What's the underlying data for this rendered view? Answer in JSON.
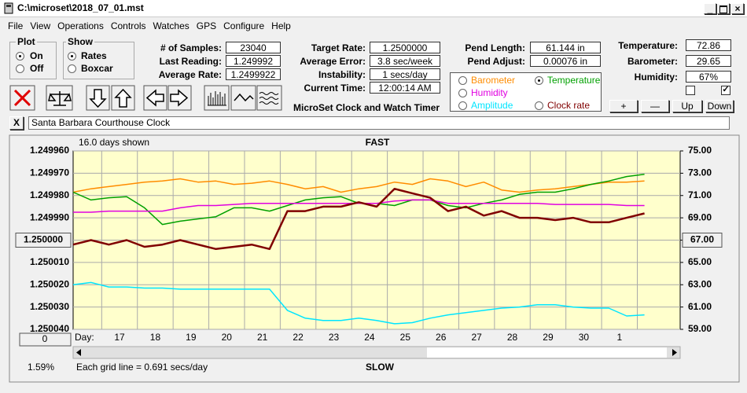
{
  "window": {
    "title": "C:\\microset\\2018_07_01.mst"
  },
  "menu": [
    "File",
    "View",
    "Operations",
    "Controls",
    "Watches",
    "GPS",
    "Configure",
    "Help"
  ],
  "plot_group": {
    "title": "Plot",
    "options": [
      "On",
      "Off"
    ]
  },
  "show_group": {
    "title": "Show",
    "options": [
      "Rates",
      "Boxcar"
    ]
  },
  "fields_left": [
    {
      "label": "# of Samples:",
      "value": "23040"
    },
    {
      "label": "Last Reading:",
      "value": "1.249992"
    },
    {
      "label": "Average Rate:",
      "value": "1.2499922"
    }
  ],
  "fields_mid": [
    {
      "label": "Target Rate:",
      "value": "1.2500000"
    },
    {
      "label": "Average Error:",
      "value": "3.8 sec/week"
    },
    {
      "label": "Instability:",
      "value": "1 secs/day"
    },
    {
      "label": "Current Time:",
      "value": "12:00:14 AM"
    }
  ],
  "app_title": "MicroSet Clock and Watch Timer",
  "fields_pend": [
    {
      "label": "Pend Length:",
      "value": "61.144 in"
    },
    {
      "label": "Pend Adjust:",
      "value": "0.00076 in"
    }
  ],
  "fields_env": [
    {
      "label": "Temperature:",
      "value": "72.86"
    },
    {
      "label": "Barometer:",
      "value": "29.65"
    },
    {
      "label": "Humidity:",
      "value": "67%"
    }
  ],
  "env_buttons": [
    "+",
    "—",
    "Up",
    "Down"
  ],
  "close_button": "X",
  "clock_name": "Santa Barbara Courthouse Clock",
  "chart_data": {
    "type": "line",
    "top_label": "16.0 days shown",
    "fast_label": "FAST",
    "slow_label": "SLOW",
    "x_label": "Day:",
    "footer": "Each grid line = 0.691 secs/day",
    "status": "1.59%",
    "bottom_button": "0",
    "selected_series": 1,
    "xlim": [
      0,
      17
    ],
    "xticks": [
      {
        "value": 1.3,
        "label": "17"
      },
      {
        "value": 2.3,
        "label": "18"
      },
      {
        "value": 3.3,
        "label": "19"
      },
      {
        "value": 4.3,
        "label": "20"
      },
      {
        "value": 5.3,
        "label": "21"
      },
      {
        "value": 6.3,
        "label": "22"
      },
      {
        "value": 7.3,
        "label": "23"
      },
      {
        "value": 8.3,
        "label": "24"
      },
      {
        "value": 9.3,
        "label": "25"
      },
      {
        "value": 10.3,
        "label": "26"
      },
      {
        "value": 11.3,
        "label": "27"
      },
      {
        "value": 12.3,
        "label": "28"
      },
      {
        "value": 13.3,
        "label": "29"
      },
      {
        "value": 14.3,
        "label": "30"
      },
      {
        "value": 15.3,
        "label": "1"
      }
    ],
    "ylim": [
      1.24996,
      1.25004
    ],
    "y_inverted": true,
    "yticks": [
      {
        "value": 1.24996,
        "label": "1.249960"
      },
      {
        "value": 1.24997,
        "label": "1.249970"
      },
      {
        "value": 1.24998,
        "label": "1.249980"
      },
      {
        "value": 1.24999,
        "label": "1.249990"
      },
      {
        "value": 1.25,
        "label": "1.250000"
      },
      {
        "value": 1.25001,
        "label": "1.250010"
      },
      {
        "value": 1.25002,
        "label": "1.250020"
      },
      {
        "value": 1.25003,
        "label": "1.250030"
      },
      {
        "value": 1.25004,
        "label": "1.250040"
      }
    ],
    "y2lim": [
      59,
      75
    ],
    "y2ticks": [
      {
        "value": 75,
        "label": "75.00"
      },
      {
        "value": 73,
        "label": "73.00"
      },
      {
        "value": 71,
        "label": "71.00"
      },
      {
        "value": 69,
        "label": "69.00"
      },
      {
        "value": 67,
        "label": "67.00"
      },
      {
        "value": 65,
        "label": "65.00"
      },
      {
        "value": 63,
        "label": "63.00"
      },
      {
        "value": 61,
        "label": "61.00"
      },
      {
        "value": 59,
        "label": "59.00"
      }
    ],
    "button_tick": 4,
    "grid": true,
    "x": [
      0,
      0.5,
      1,
      1.5,
      2,
      2.5,
      3,
      3.5,
      4,
      4.5,
      5,
      5.5,
      6,
      6.5,
      7,
      7.5,
      8,
      8.5,
      9,
      9.5,
      10,
      10.5,
      11,
      11.5,
      12,
      12.5,
      13,
      13.5,
      14,
      14.5,
      15,
      15.5,
      16
    ],
    "series": [
      {
        "name": "Barometer",
        "color": "#ff8c00",
        "axis": "y2",
        "values": [
          71.3,
          71.6,
          71.8,
          72.0,
          72.2,
          72.3,
          72.5,
          72.2,
          72.3,
          72.0,
          72.1,
          72.3,
          72.0,
          71.6,
          71.8,
          71.3,
          71.6,
          71.8,
          72.2,
          72.0,
          72.5,
          72.3,
          71.8,
          72.2,
          71.5,
          71.3,
          71.5,
          71.6,
          71.8,
          72.0,
          72.2,
          72.2,
          72.3
        ]
      },
      {
        "name": "Temperature",
        "color": "#00a000",
        "axis": "y2",
        "values": [
          71.3,
          70.6,
          70.8,
          70.9,
          69.9,
          68.4,
          68.7,
          68.9,
          69.1,
          69.9,
          69.9,
          69.6,
          70.1,
          70.6,
          70.8,
          70.9,
          70.3,
          70.3,
          70.1,
          70.6,
          70.6,
          70.1,
          69.9,
          70.3,
          70.6,
          71.1,
          71.3,
          71.3,
          71.6,
          72.0,
          72.3,
          72.7,
          72.9
        ]
      },
      {
        "name": "Humidity",
        "color": "#e000e0",
        "axis": "y2",
        "values": [
          69.5,
          69.5,
          69.6,
          69.6,
          69.6,
          69.6,
          69.9,
          70.1,
          70.1,
          70.2,
          70.3,
          70.3,
          70.3,
          70.3,
          70.3,
          70.3,
          70.3,
          70.3,
          70.5,
          70.6,
          70.6,
          70.3,
          70.3,
          70.3,
          70.3,
          70.3,
          70.3,
          70.2,
          70.2,
          70.2,
          70.2,
          70.1,
          70.1
        ]
      },
      {
        "name": "Amplitude",
        "color": "#00e5ff",
        "axis": "y2",
        "values": [
          63.0,
          63.2,
          62.8,
          62.8,
          62.7,
          62.7,
          62.6,
          62.6,
          62.6,
          62.6,
          62.6,
          62.6,
          60.7,
          60.0,
          59.8,
          59.8,
          60.0,
          59.8,
          59.5,
          59.6,
          60.0,
          60.3,
          60.5,
          60.7,
          60.9,
          61.0,
          61.2,
          61.2,
          61.0,
          60.9,
          60.9,
          60.2,
          60.3
        ]
      },
      {
        "name": "Clock rate",
        "color": "#800000",
        "axis": "y",
        "values": [
          1.250002,
          1.25,
          1.250002,
          1.25,
          1.250003,
          1.250002,
          1.25,
          1.250002,
          1.250004,
          1.250003,
          1.250002,
          1.250004,
          1.249987,
          1.249987,
          1.249985,
          1.249985,
          1.249983,
          1.249985,
          1.249977,
          1.249979,
          1.249981,
          1.249987,
          1.249985,
          1.249989,
          1.249987,
          1.24999,
          1.24999,
          1.249991,
          1.24999,
          1.249992,
          1.249992,
          1.24999,
          1.249988
        ]
      }
    ]
  }
}
